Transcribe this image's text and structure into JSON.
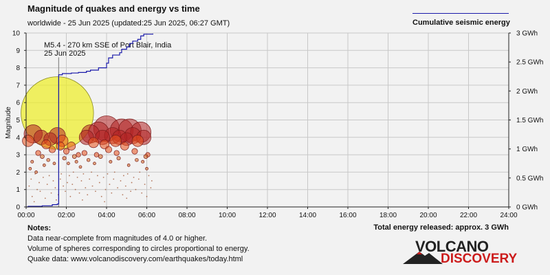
{
  "title": "Magnitude of quakes and energy vs time",
  "subtitle": "worldwide - 25 Jun 2025 (updated:25 Jun 2025, 06:27 GMT)",
  "legend_label": "Cumulative seismic energy",
  "total_energy": "Total energy released: approx. 3 GWh",
  "notes": {
    "heading": "Notes:",
    "lines": [
      "Data near-complete from magnitudes of 4.0 or higher.",
      "Volume of spheres corresponding to circles proportional to energy.",
      "Quake data: www.volcanodiscovery.com/earthquakes/today.html"
    ]
  },
  "logo": {
    "top": "VOLCANO",
    "bottom": "DISCOVERY"
  },
  "colors": {
    "energy_line": "#1a1aaa",
    "big_quake": "#eeee22",
    "quake_high": "#b22222",
    "quake_mid": "#e8501a",
    "quake_low": "#d2691e"
  },
  "chart_data": {
    "type": "scatter",
    "title": "Magnitude of quakes and energy vs time",
    "ylabel": "Magnitude",
    "xlim": [
      0,
      24
    ],
    "ylim": [
      0,
      10
    ],
    "y2lim": [
      0,
      3
    ],
    "x_ticks": [
      "00:00",
      "02:00",
      "04:00",
      "06:00",
      "08:00",
      "10:00",
      "12:00",
      "14:00",
      "16:00",
      "18:00",
      "20:00",
      "22:00",
      "24:00"
    ],
    "y_ticks": [
      "0",
      "1",
      "2",
      "3",
      "4",
      "5",
      "6",
      "7",
      "8",
      "9",
      "10"
    ],
    "y2_ticks": [
      "0 GWh",
      "0.5 GWh",
      "1 GWh",
      "1.5 GWh",
      "2 GWh",
      "2.5 GWh",
      "3 GWh"
    ],
    "annotation": {
      "line1": "M5.4 - 270 km SSE of Port Blair, India",
      "line2": "25 Jun 2025",
      "time": 1.62
    },
    "quakes": [
      {
        "t": 1.55,
        "m": 5.4
      },
      {
        "t": 0.1,
        "m": 3.8
      },
      {
        "t": 0.35,
        "m": 4.2
      },
      {
        "t": 0.6,
        "m": 3.1
      },
      {
        "t": 0.8,
        "m": 2.9
      },
      {
        "t": 0.75,
        "m": 4.0
      },
      {
        "t": 1.0,
        "m": 3.6
      },
      {
        "t": 1.2,
        "m": 3.9
      },
      {
        "t": 1.3,
        "m": 3.3
      },
      {
        "t": 1.55,
        "m": 4.1
      },
      {
        "t": 1.7,
        "m": 3.5
      },
      {
        "t": 1.8,
        "m": 3.8
      },
      {
        "t": 2.0,
        "m": 3.2
      },
      {
        "t": 2.25,
        "m": 3.5
      },
      {
        "t": 2.4,
        "m": 2.9
      },
      {
        "t": 2.6,
        "m": 3.0
      },
      {
        "t": 2.9,
        "m": 3.1
      },
      {
        "t": 3.0,
        "m": 4.0
      },
      {
        "t": 3.2,
        "m": 4.2
      },
      {
        "t": 3.35,
        "m": 3.7
      },
      {
        "t": 3.5,
        "m": 3.0
      },
      {
        "t": 3.6,
        "m": 4.3
      },
      {
        "t": 3.8,
        "m": 4.0
      },
      {
        "t": 3.9,
        "m": 3.6
      },
      {
        "t": 4.0,
        "m": 4.5
      },
      {
        "t": 4.1,
        "m": 3.3
      },
      {
        "t": 4.3,
        "m": 4.1
      },
      {
        "t": 4.45,
        "m": 3.8
      },
      {
        "t": 4.5,
        "m": 3.1
      },
      {
        "t": 4.65,
        "m": 4.0
      },
      {
        "t": 4.75,
        "m": 4.4
      },
      {
        "t": 4.9,
        "m": 3.5
      },
      {
        "t": 5.0,
        "m": 3.9
      },
      {
        "t": 5.15,
        "m": 4.4
      },
      {
        "t": 5.3,
        "m": 4.1
      },
      {
        "t": 5.4,
        "m": 3.2
      },
      {
        "t": 5.55,
        "m": 3.8
      },
      {
        "t": 5.7,
        "m": 4.3
      },
      {
        "t": 5.85,
        "m": 4.0
      },
      {
        "t": 5.95,
        "m": 2.9
      },
      {
        "t": 6.05,
        "m": 3.0
      },
      {
        "t": 0.2,
        "m": 2.2
      },
      {
        "t": 0.3,
        "m": 2.6
      },
      {
        "t": 0.5,
        "m": 2.0
      },
      {
        "t": 0.9,
        "m": 2.4
      },
      {
        "t": 1.1,
        "m": 2.7
      },
      {
        "t": 1.4,
        "m": 2.5
      },
      {
        "t": 1.9,
        "m": 2.8
      },
      {
        "t": 2.1,
        "m": 2.5
      },
      {
        "t": 2.5,
        "m": 2.6
      },
      {
        "t": 2.7,
        "m": 2.3
      },
      {
        "t": 3.1,
        "m": 2.7
      },
      {
        "t": 3.4,
        "m": 2.5
      },
      {
        "t": 3.7,
        "m": 2.9
      },
      {
        "t": 4.2,
        "m": 2.6
      },
      {
        "t": 4.6,
        "m": 2.8
      },
      {
        "t": 5.1,
        "m": 2.4
      },
      {
        "t": 5.5,
        "m": 2.7
      },
      {
        "t": 5.8,
        "m": 2.6
      },
      {
        "t": 6.0,
        "m": 2.2
      }
    ],
    "small_quakes": [
      {
        "t": 0.15,
        "m": 1.2
      },
      {
        "t": 0.25,
        "m": 1.6
      },
      {
        "t": 0.3,
        "m": 0.6
      },
      {
        "t": 0.45,
        "m": 1.9
      },
      {
        "t": 0.55,
        "m": 1.0
      },
      {
        "t": 0.65,
        "m": 1.4
      },
      {
        "t": 0.7,
        "m": 0.9
      },
      {
        "t": 0.85,
        "m": 1.7
      },
      {
        "t": 0.95,
        "m": 0.5
      },
      {
        "t": 1.05,
        "m": 1.3
      },
      {
        "t": 1.15,
        "m": 1.8
      },
      {
        "t": 1.25,
        "m": 0.8
      },
      {
        "t": 1.35,
        "m": 1.5
      },
      {
        "t": 1.45,
        "m": 1.1
      },
      {
        "t": 1.6,
        "m": 0.7
      },
      {
        "t": 1.7,
        "m": 1.6
      },
      {
        "t": 1.75,
        "m": 1.9
      },
      {
        "t": 1.85,
        "m": 1.2
      },
      {
        "t": 1.95,
        "m": 0.9
      },
      {
        "t": 2.05,
        "m": 1.4
      },
      {
        "t": 2.15,
        "m": 1.8
      },
      {
        "t": 2.2,
        "m": 0.6
      },
      {
        "t": 2.3,
        "m": 1.3
      },
      {
        "t": 2.35,
        "m": 2.0
      },
      {
        "t": 2.45,
        "m": 1.0
      },
      {
        "t": 2.55,
        "m": 1.7
      },
      {
        "t": 2.65,
        "m": 0.8
      },
      {
        "t": 2.75,
        "m": 1.5
      },
      {
        "t": 2.85,
        "m": 1.9
      },
      {
        "t": 2.95,
        "m": 1.1
      },
      {
        "t": 3.05,
        "m": 0.7
      },
      {
        "t": 3.15,
        "m": 1.6
      },
      {
        "t": 3.25,
        "m": 2.0
      },
      {
        "t": 3.3,
        "m": 1.2
      },
      {
        "t": 3.45,
        "m": 0.9
      },
      {
        "t": 3.55,
        "m": 1.8
      },
      {
        "t": 3.65,
        "m": 1.4
      },
      {
        "t": 3.75,
        "m": 0.6
      },
      {
        "t": 3.85,
        "m": 1.7
      },
      {
        "t": 3.95,
        "m": 1.0
      },
      {
        "t": 4.05,
        "m": 1.9
      },
      {
        "t": 4.15,
        "m": 1.3
      },
      {
        "t": 4.25,
        "m": 0.8
      },
      {
        "t": 4.35,
        "m": 1.6
      },
      {
        "t": 4.4,
        "m": 2.0
      },
      {
        "t": 4.55,
        "m": 1.1
      },
      {
        "t": 4.7,
        "m": 1.5
      },
      {
        "t": 4.8,
        "m": 0.7
      },
      {
        "t": 4.85,
        "m": 1.8
      },
      {
        "t": 4.95,
        "m": 1.2
      },
      {
        "t": 5.05,
        "m": 1.9
      },
      {
        "t": 5.2,
        "m": 0.9
      },
      {
        "t": 5.25,
        "m": 1.4
      },
      {
        "t": 5.35,
        "m": 1.7
      },
      {
        "t": 5.45,
        "m": 1.0
      },
      {
        "t": 5.6,
        "m": 1.6
      },
      {
        "t": 5.65,
        "m": 2.0
      },
      {
        "t": 5.75,
        "m": 0.8
      },
      {
        "t": 5.9,
        "m": 1.3
      },
      {
        "t": 6.1,
        "m": 1.8
      },
      {
        "t": 6.2,
        "m": 1.1
      },
      {
        "t": 6.25,
        "m": 1.5
      },
      {
        "t": 0.4,
        "m": 0.3
      },
      {
        "t": 1.5,
        "m": 0.4
      },
      {
        "t": 2.8,
        "m": 0.4
      },
      {
        "t": 3.9,
        "m": 0.3
      },
      {
        "t": 5.0,
        "m": 0.5
      },
      {
        "t": 6.0,
        "m": 0.6
      }
    ],
    "energy_steps": [
      {
        "t": 0.1,
        "e": 0.01
      },
      {
        "t": 0.8,
        "e": 0.02
      },
      {
        "t": 1.3,
        "e": 0.04
      },
      {
        "t": 1.55,
        "e": 0.05
      },
      {
        "t": 1.62,
        "e": 2.28
      },
      {
        "t": 1.8,
        "e": 2.3
      },
      {
        "t": 2.25,
        "e": 2.31
      },
      {
        "t": 2.6,
        "e": 2.32
      },
      {
        "t": 3.0,
        "e": 2.34
      },
      {
        "t": 3.2,
        "e": 2.36
      },
      {
        "t": 3.6,
        "e": 2.4
      },
      {
        "t": 4.0,
        "e": 2.48
      },
      {
        "t": 4.1,
        "e": 2.57
      },
      {
        "t": 4.3,
        "e": 2.62
      },
      {
        "t": 4.65,
        "e": 2.66
      },
      {
        "t": 4.75,
        "e": 2.72
      },
      {
        "t": 5.0,
        "e": 2.76
      },
      {
        "t": 5.15,
        "e": 2.82
      },
      {
        "t": 5.3,
        "e": 2.86
      },
      {
        "t": 5.55,
        "e": 2.89
      },
      {
        "t": 5.7,
        "e": 2.95
      },
      {
        "t": 5.85,
        "e": 2.98
      },
      {
        "t": 6.3,
        "e": 2.99
      }
    ]
  }
}
